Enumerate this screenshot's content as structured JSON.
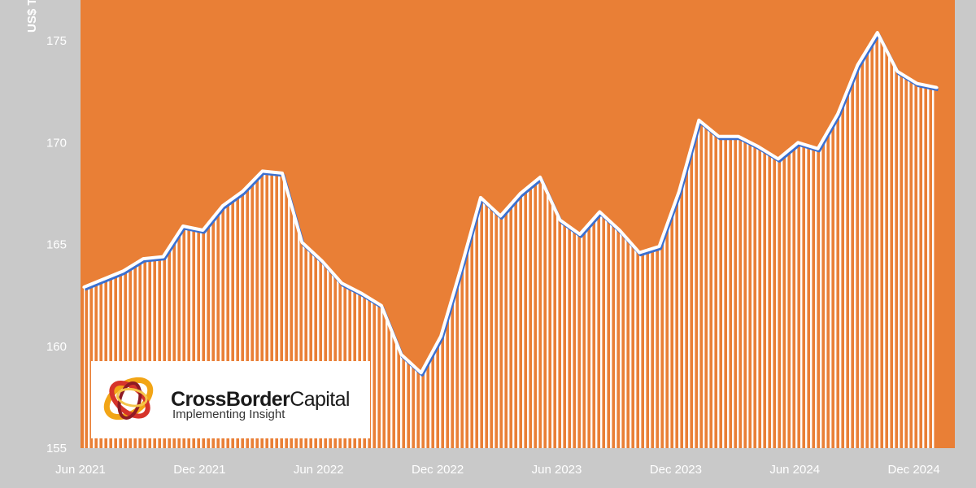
{
  "chart_data": {
    "type": "area",
    "title": "",
    "ylabel": "US$ T",
    "xlabel": "",
    "ylim": [
      155,
      177
    ],
    "yticks": [
      "155",
      "160",
      "165",
      "170",
      "175"
    ],
    "xticks": [
      "Jun 2021",
      "Dec 2021",
      "Jun 2022",
      "Dec 2022",
      "Jun 2023",
      "Dec 2023",
      "Jun 2024",
      "Dec 2024"
    ],
    "grid": false,
    "colors": {
      "plot_bg": "#e97f36",
      "fill_stripes": "#ffffff",
      "line": "#ffffff",
      "line_shadow": "#3a6fd0",
      "frame": "#c9c9c9"
    },
    "x": [
      "2021-06",
      "2021-07",
      "2021-08",
      "2021-09",
      "2021-10",
      "2021-11",
      "2021-12",
      "2022-01",
      "2022-02",
      "2022-03",
      "2022-04",
      "2022-05",
      "2022-06",
      "2022-07",
      "2022-08",
      "2022-09",
      "2022-10",
      "2022-11",
      "2022-12",
      "2023-01",
      "2023-02",
      "2023-03",
      "2023-04",
      "2023-05",
      "2023-06",
      "2023-07",
      "2023-08",
      "2023-09",
      "2023-10",
      "2023-11",
      "2023-12",
      "2024-01",
      "2024-02",
      "2024-03",
      "2024-04",
      "2024-05",
      "2024-06",
      "2024-07",
      "2024-08",
      "2024-09",
      "2024-10",
      "2024-11",
      "2024-12",
      "2025-01"
    ],
    "series": [
      {
        "values": [
          162.9,
          163.3,
          163.7,
          164.3,
          164.4,
          165.9,
          165.7,
          166.9,
          167.6,
          168.6,
          168.5,
          165.1,
          164.2,
          163.1,
          162.6,
          162.0,
          159.6,
          158.7,
          160.5,
          163.8,
          167.3,
          166.4,
          167.5,
          168.3,
          166.2,
          165.5,
          166.6,
          165.7,
          164.6,
          164.9,
          167.6,
          171.1,
          170.3,
          170.3,
          169.8,
          169.2,
          170.0,
          169.7,
          171.4,
          173.8,
          175.4,
          173.5,
          172.9,
          172.7
        ]
      }
    ]
  },
  "logo": {
    "name_part1": "CrossBorder",
    "name_part2": "Capital",
    "tagline": "Implementing Insight"
  }
}
